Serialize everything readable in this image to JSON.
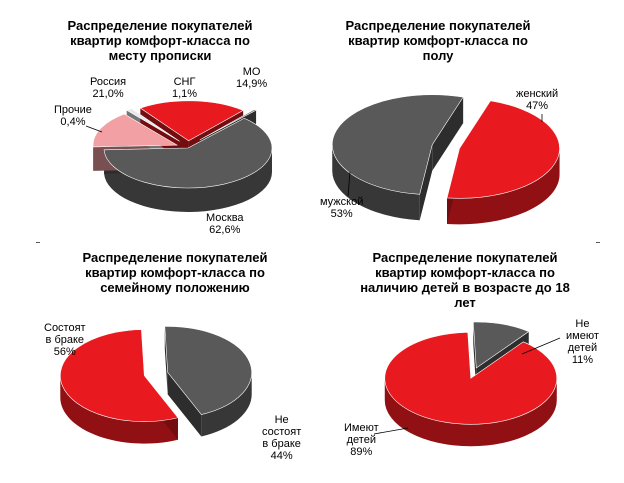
{
  "chart_data": [
    {
      "type": "pie",
      "title": "Распределение покупателей квартир комфорт-класса по месту прописки",
      "series": [
        {
          "name": "Москва",
          "value": 62.6,
          "label": "62,6%",
          "color": "#595959"
        },
        {
          "name": "МО",
          "value": 14.9,
          "label": "14,9%",
          "color": "#f2a0a3"
        },
        {
          "name": "СНГ",
          "value": 1.1,
          "label": "1,1%",
          "color": "#e8e8e8"
        },
        {
          "name": "Россия",
          "value": 21.0,
          "label": "21,0%",
          "color": "#e8191f"
        },
        {
          "name": "Прочие",
          "value": 0.4,
          "label": "0,4%",
          "color": "#595959"
        }
      ]
    },
    {
      "type": "pie",
      "title": "Распределение покупателей квартир комфорт-класса по полу",
      "series": [
        {
          "name": "женский",
          "value": 47,
          "label": "47%",
          "color": "#e8191f"
        },
        {
          "name": "мужской",
          "value": 53,
          "label": "53%",
          "color": "#595959"
        }
      ]
    },
    {
      "type": "pie",
      "title": "Распределение покупателей квартир комфорт-класса по семейному положению",
      "series": [
        {
          "name": "Не состоят в браке",
          "value": 44,
          "label": "44%",
          "color": "#595959"
        },
        {
          "name": "Состоят в браке",
          "value": 56,
          "label": "56%",
          "color": "#e8191f"
        }
      ]
    },
    {
      "type": "pie",
      "title": "Распределение покупателей квартир комфорт-класса по наличию детей в возрасте до 18 лет",
      "series": [
        {
          "name": "Не имеют детей",
          "value": 11,
          "label": "11%",
          "color": "#595959"
        },
        {
          "name": "Имеют детей",
          "value": 89,
          "label": "89%",
          "color": "#e8191f"
        }
      ]
    }
  ],
  "labels": {
    "c1": {
      "moskva": "Москва",
      "mo": "МО",
      "sng": "СНГ",
      "rossiya": "Россия",
      "prochie": "Прочие"
    },
    "c2": {
      "zhen": "женский",
      "muzh": "мужской"
    },
    "c3": {
      "sost_line1": "Состоят",
      "sost_line2": "в браке",
      "ne_line1": "Не",
      "ne_line2": "состоят",
      "ne_line3": "в браке"
    },
    "c4": {
      "ne_line1": "Не",
      "ne_line2": "имеют",
      "ne_line3": "детей",
      "im_line1": "Имеют",
      "im_line2": "детей"
    }
  }
}
